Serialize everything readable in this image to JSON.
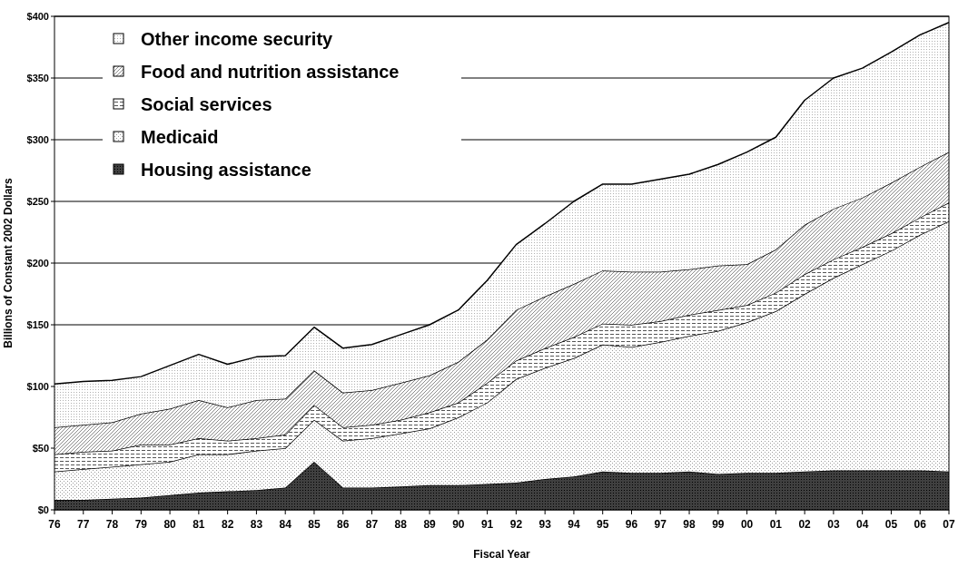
{
  "chart_data": {
    "type": "area",
    "stacked": true,
    "xlabel": "Fiscal Year",
    "ylabel": "Billions of Constant 2002 Dollars",
    "categories": [
      "76",
      "77",
      "78",
      "79",
      "80",
      "81",
      "82",
      "83",
      "84",
      "85",
      "86",
      "87",
      "88",
      "89",
      "90",
      "91",
      "92",
      "93",
      "94",
      "95",
      "96",
      "97",
      "98",
      "99",
      "00",
      "01",
      "02",
      "03",
      "04",
      "05",
      "06",
      "07"
    ],
    "series": [
      {
        "name": "Housing assistance",
        "color": "#404040",
        "values": [
          8,
          8,
          9,
          10,
          12,
          14,
          15,
          16,
          18,
          39,
          18,
          18,
          19,
          20,
          20,
          21,
          22,
          25,
          27,
          31,
          30,
          30,
          31,
          29,
          30,
          30,
          31,
          32,
          32,
          32,
          32,
          31
        ]
      },
      {
        "name": "Medicaid",
        "color": "#9a9a9a",
        "values": [
          23,
          25,
          26,
          27,
          27,
          31,
          30,
          32,
          32,
          34,
          38,
          40,
          43,
          46,
          55,
          66,
          84,
          90,
          96,
          103,
          102,
          106,
          110,
          116,
          122,
          131,
          144,
          156,
          167,
          178,
          191,
          203
        ]
      },
      {
        "name": "Social services",
        "color": "#555555",
        "values": [
          14,
          14,
          13,
          16,
          14,
          13,
          11,
          10,
          11,
          12,
          11,
          11,
          11,
          13,
          12,
          16,
          15,
          16,
          17,
          17,
          18,
          17,
          17,
          17,
          14,
          15,
          16,
          15,
          14,
          14,
          14,
          15
        ]
      },
      {
        "name": "Food and nutrition assistance",
        "color": "#8a8a8a",
        "values": [
          22,
          22,
          23,
          25,
          29,
          31,
          27,
          31,
          29,
          28,
          28,
          28,
          30,
          30,
          33,
          35,
          41,
          42,
          43,
          43,
          43,
          40,
          37,
          36,
          33,
          35,
          40,
          41,
          40,
          41,
          41,
          41
        ]
      },
      {
        "name": "Other income security",
        "color": "#b0b0b0",
        "values": [
          35,
          35,
          34,
          30,
          35,
          37,
          35,
          35,
          35,
          35,
          36,
          37,
          39,
          41,
          42,
          48,
          53,
          59,
          67,
          70,
          71,
          75,
          77,
          82,
          91,
          91,
          101,
          106,
          105,
          106,
          107,
          105
        ]
      }
    ],
    "ylim": [
      0,
      400
    ],
    "yticks": [
      {
        "value": 0,
        "label": "$0"
      },
      {
        "value": 50,
        "label": "$50"
      },
      {
        "value": 100,
        "label": "$100"
      },
      {
        "value": 150,
        "label": "$150"
      },
      {
        "value": 200,
        "label": "$200"
      },
      {
        "value": 250,
        "label": "$250"
      },
      {
        "value": 300,
        "label": "$300"
      },
      {
        "value": 350,
        "label": "$350"
      },
      {
        "value": 400,
        "label": "$400"
      }
    ],
    "grid": "y",
    "legend": "top left"
  }
}
